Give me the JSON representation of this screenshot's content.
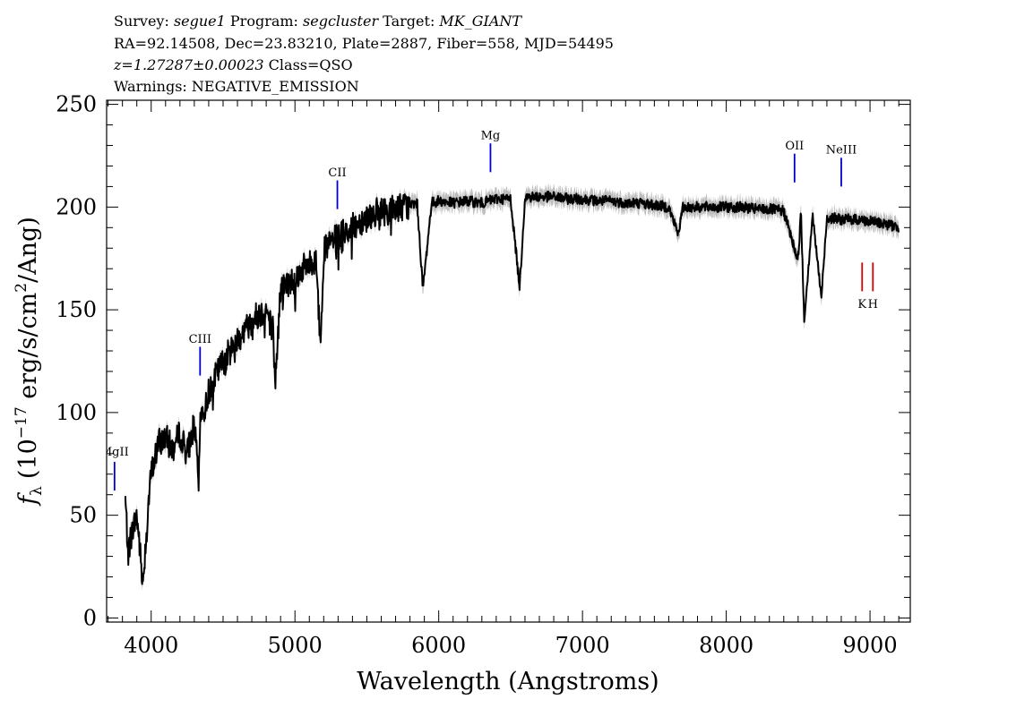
{
  "header": {
    "line1": [
      {
        "text": "Survey: ",
        "italic": false
      },
      {
        "text": "segue1",
        "italic": true
      },
      {
        "text": " Program: ",
        "italic": false
      },
      {
        "text": "segcluster",
        "italic": true
      },
      {
        "text": " Target: ",
        "italic": false
      },
      {
        "text": "MK_GIANT",
        "italic": true
      }
    ],
    "line2": "RA=92.14508, Dec=23.83210, Plate=2887, Fiber=558, MJD=54495",
    "line3_z": "z=1.27287±0.00023",
    "line3_class": " Class=QSO",
    "line4": "Warnings: NEGATIVE_EMISSION"
  },
  "chart_data": {
    "type": "line",
    "xlabel": "Wavelength (Angstroms)",
    "ylabel_main": "f",
    "ylabel_sub": "λ",
    "ylabel_units": "(10",
    "ylabel_exp1": "−17",
    "ylabel_mid": " erg/s/cm",
    "ylabel_exp2": "2",
    "ylabel_end": "/Ang)",
    "xlim": [
      3690,
      9280
    ],
    "ylim": [
      -2,
      252
    ],
    "x_ticks": [
      4000,
      5000,
      6000,
      7000,
      8000,
      9000
    ],
    "x_tick_labels": [
      "4000",
      "5000",
      "6000",
      "7000",
      "8000",
      "9000"
    ],
    "y_ticks": [
      0,
      50,
      100,
      150,
      200,
      250
    ],
    "y_tick_labels": [
      "0",
      "50",
      "100",
      "150",
      "200",
      "250"
    ],
    "series": [
      {
        "color": "#000000",
        "error_color": "#bdbdbd",
        "x": [
          3820,
          3840,
          3860,
          3880,
          3900,
          3920,
          3940,
          3960,
          3980,
          4000,
          4050,
          4100,
          4150,
          4200,
          4250,
          4300,
          4330,
          4345,
          4360,
          4400,
          4450,
          4500,
          4550,
          4600,
          4650,
          4700,
          4750,
          4800,
          4850,
          4861,
          4900,
          4950,
          5000,
          5050,
          5100,
          5150,
          5175,
          5200,
          5250,
          5300,
          5350,
          5400,
          5450,
          5500,
          5550,
          5600,
          5650,
          5700,
          5750,
          5800,
          5850,
          5890,
          5950,
          6000,
          6100,
          6200,
          6300,
          6400,
          6500,
          6563,
          6600,
          6700,
          6800,
          6900,
          7000,
          7100,
          7200,
          7300,
          7400,
          7500,
          7600,
          7665,
          7700,
          7800,
          7900,
          8000,
          8100,
          8200,
          8300,
          8400,
          8498,
          8520,
          8542,
          8600,
          8662,
          8700,
          8800,
          8900,
          9000,
          9100,
          9200
        ],
        "y": [
          58,
          32,
          40,
          45,
          50,
          35,
          16,
          35,
          55,
          70,
          85,
          88,
          82,
          90,
          80,
          95,
          65,
          100,
          98,
          110,
          118,
          125,
          130,
          136,
          140,
          145,
          148,
          150,
          140,
          112,
          160,
          163,
          165,
          170,
          172,
          175,
          132,
          178,
          183,
          185,
          188,
          190,
          193,
          195,
          197,
          198,
          198,
          200,
          200,
          201,
          202,
          160,
          202,
          203,
          202,
          203,
          202,
          204,
          204,
          161,
          205,
          205,
          205,
          204,
          204,
          203,
          203,
          202,
          202,
          201,
          200,
          187,
          200,
          200,
          200,
          200,
          200,
          199,
          199,
          198,
          174,
          197,
          145,
          196,
          156,
          195,
          194,
          194,
          193,
          192,
          190
        ]
      }
    ],
    "emission_lines": [
      {
        "label": "MgII",
        "x": 3745,
        "y_low": 62,
        "y_high": 76,
        "label_y": 79
      },
      {
        "label": "CIII",
        "x": 4340,
        "y_low": 118,
        "y_high": 132,
        "label_y": 134
      },
      {
        "label": "CII",
        "x": 5295,
        "y_low": 199,
        "y_high": 213,
        "label_y": 215
      },
      {
        "label": "Mg",
        "x": 6360,
        "y_low": 217,
        "y_high": 231,
        "label_y": 233
      },
      {
        "label": "OII",
        "x": 8475,
        "y_low": 212,
        "y_high": 226,
        "label_y": 228
      },
      {
        "label": "NeIII",
        "x": 8800,
        "y_low": 210,
        "y_high": 224,
        "label_y": 226
      }
    ],
    "absorption_lines": [
      {
        "label": "K",
        "x": 8945,
        "y_low": 159,
        "y_high": 173,
        "label_y": 151
      },
      {
        "label": "H",
        "x": 9020,
        "y_low": 159,
        "y_high": 173,
        "label_y": 151
      }
    ],
    "colors": {
      "spectrum": "#000000",
      "error": "#bdbdbd",
      "emission": "#0000cc",
      "absorption": "#dd0000"
    }
  }
}
